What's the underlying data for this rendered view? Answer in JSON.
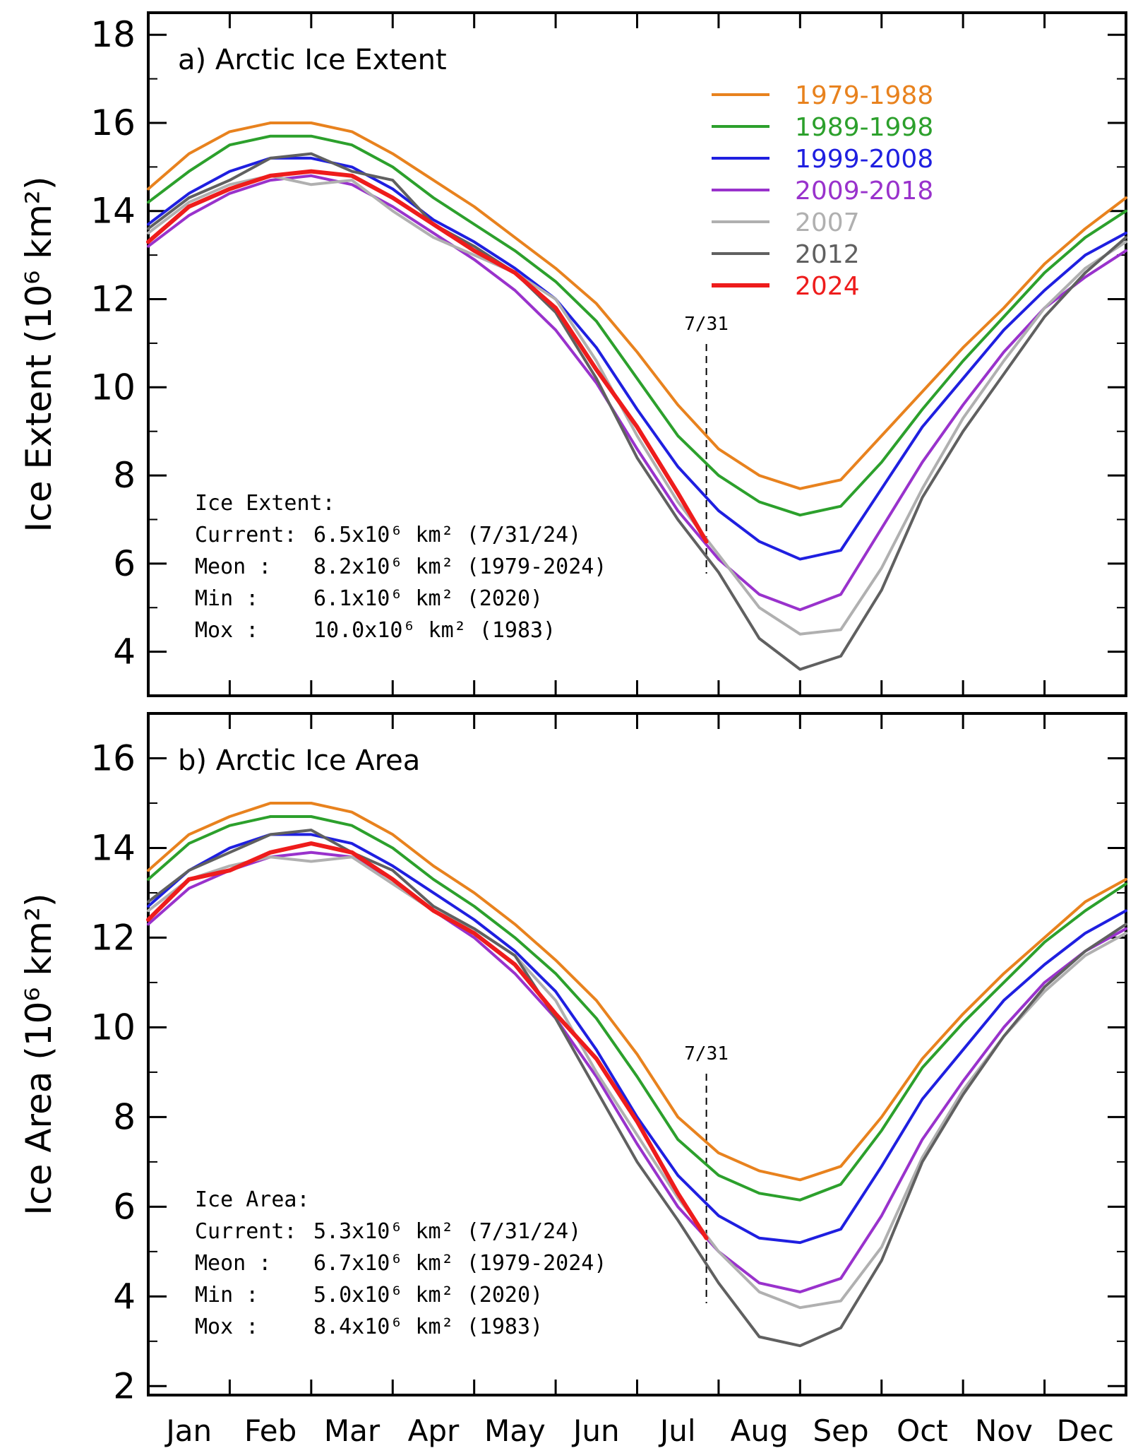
{
  "chart_data": [
    {
      "type": "line",
      "title": "a) Arctic Ice Extent",
      "ylabel": "Ice Extent (10⁶ km²)",
      "ylim": [
        3,
        18.5
      ],
      "yticks": [
        4,
        6,
        8,
        10,
        12,
        14,
        16,
        18
      ],
      "marker_label": "7/31",
      "stats_heading": "Ice Extent:",
      "stats": [
        {
          "label": "Current:",
          "value": "6.5x10⁶ km² (7/31/24)"
        },
        {
          "label": "Meon   :",
          "value": "8.2x10⁶ km² (1979-2024)"
        },
        {
          "label": "Min     :",
          "value": "6.1x10⁶ km² (2020)"
        },
        {
          "label": "Mox    :",
          "value": "10.0x10⁶ km² (1983)"
        }
      ],
      "x_units": "month (1.0 = start of Jan, 13.0 = end of Dec)",
      "series": [
        {
          "name": "1979-1988",
          "color": "#e8821e",
          "x": [
            1,
            1.5,
            2,
            2.5,
            3,
            3.5,
            4,
            4.5,
            5,
            5.5,
            6,
            6.5,
            7,
            7.5,
            8,
            8.5,
            9,
            9.5,
            10,
            10.5,
            11,
            11.5,
            12,
            12.5,
            13
          ],
          "y": [
            14.5,
            15.3,
            15.8,
            16.0,
            16.0,
            15.8,
            15.3,
            14.7,
            14.1,
            13.4,
            12.7,
            11.9,
            10.8,
            9.6,
            8.6,
            8.0,
            7.7,
            7.9,
            8.9,
            9.9,
            10.9,
            11.8,
            12.8,
            13.6,
            14.3
          ]
        },
        {
          "name": "1989-1998",
          "color": "#2ca02c",
          "x": [
            1,
            1.5,
            2,
            2.5,
            3,
            3.5,
            4,
            4.5,
            5,
            5.5,
            6,
            6.5,
            7,
            7.5,
            8,
            8.5,
            9,
            9.5,
            10,
            10.5,
            11,
            11.5,
            12,
            12.5,
            13
          ],
          "y": [
            14.2,
            14.9,
            15.5,
            15.7,
            15.7,
            15.5,
            15.0,
            14.3,
            13.7,
            13.1,
            12.4,
            11.5,
            10.2,
            8.9,
            8.0,
            7.4,
            7.1,
            7.3,
            8.3,
            9.5,
            10.6,
            11.6,
            12.6,
            13.4,
            14.0
          ]
        },
        {
          "name": "1999-2008",
          "color": "#1f1fe0",
          "x": [
            1,
            1.5,
            2,
            2.5,
            3,
            3.5,
            4,
            4.5,
            5,
            5.5,
            6,
            6.5,
            7,
            7.5,
            8,
            8.5,
            9,
            9.5,
            10,
            10.5,
            11,
            11.5,
            12,
            12.5,
            13
          ],
          "y": [
            13.7,
            14.4,
            14.9,
            15.2,
            15.2,
            15.0,
            14.5,
            13.8,
            13.3,
            12.7,
            12.0,
            10.9,
            9.5,
            8.2,
            7.2,
            6.5,
            6.1,
            6.3,
            7.7,
            9.1,
            10.2,
            11.3,
            12.2,
            13.0,
            13.5
          ]
        },
        {
          "name": "2009-2018",
          "color": "#9932cc",
          "x": [
            1,
            1.5,
            2,
            2.5,
            3,
            3.5,
            4,
            4.5,
            5,
            5.5,
            6,
            6.5,
            7,
            7.5,
            8,
            8.5,
            9,
            9.5,
            10,
            10.5,
            11,
            11.5,
            12,
            12.5,
            13
          ],
          "y": [
            13.2,
            13.9,
            14.4,
            14.7,
            14.8,
            14.6,
            14.1,
            13.5,
            12.9,
            12.2,
            11.3,
            10.1,
            8.6,
            7.2,
            6.1,
            5.3,
            4.95,
            5.3,
            6.8,
            8.3,
            9.6,
            10.8,
            11.8,
            12.5,
            13.1
          ]
        },
        {
          "name": "2007",
          "color": "#b0b0b0",
          "x": [
            1,
            1.5,
            2,
            2.5,
            3,
            3.5,
            4,
            4.5,
            5,
            5.5,
            6,
            6.5,
            7,
            7.5,
            8,
            8.5,
            9,
            9.5,
            10,
            10.5,
            11,
            11.5,
            12,
            12.5,
            13
          ],
          "y": [
            13.5,
            14.2,
            14.6,
            14.8,
            14.6,
            14.7,
            14.0,
            13.4,
            13.0,
            12.6,
            12.0,
            10.6,
            8.9,
            7.4,
            6.2,
            5.0,
            4.4,
            4.5,
            5.9,
            7.7,
            9.3,
            10.6,
            11.8,
            12.7,
            13.3
          ]
        },
        {
          "name": "2012",
          "color": "#606060",
          "x": [
            1,
            1.5,
            2,
            2.5,
            3,
            3.5,
            4,
            4.5,
            5,
            5.5,
            6,
            6.5,
            7,
            7.5,
            8,
            8.5,
            9,
            9.5,
            10,
            10.5,
            11,
            11.5,
            12,
            12.5,
            13
          ],
          "y": [
            13.6,
            14.3,
            14.7,
            15.2,
            15.3,
            14.9,
            14.7,
            13.7,
            13.2,
            12.6,
            11.7,
            10.2,
            8.4,
            7.0,
            5.8,
            4.3,
            3.6,
            3.9,
            5.4,
            7.5,
            9.0,
            10.3,
            11.6,
            12.6,
            13.4
          ]
        },
        {
          "name": "2024",
          "color": "#ee1c1c",
          "x": [
            1,
            1.5,
            2,
            2.5,
            3,
            3.5,
            4,
            4.5,
            5,
            5.5,
            6,
            6.5,
            7,
            7.5,
            7.85
          ],
          "y": [
            13.3,
            14.1,
            14.5,
            14.8,
            14.9,
            14.8,
            14.3,
            13.7,
            13.1,
            12.6,
            11.8,
            10.4,
            9.1,
            7.6,
            6.5
          ]
        }
      ]
    },
    {
      "type": "line",
      "title": "b) Arctic Ice Area",
      "ylabel": "Ice Area (10⁶ km²)",
      "ylim": [
        1.8,
        17
      ],
      "yticks": [
        2,
        4,
        6,
        8,
        10,
        12,
        14,
        16
      ],
      "xticks": [
        "Jan",
        "Feb",
        "Mar",
        "Apr",
        "May",
        "Jun",
        "Jul",
        "Aug",
        "Sep",
        "Oct",
        "Nov",
        "Dec"
      ],
      "marker_label": "7/31",
      "stats_heading": "Ice Area:",
      "stats": [
        {
          "label": "Current:",
          "value": "5.3x10⁶ km² (7/31/24)"
        },
        {
          "label": "Meon   :",
          "value": "6.7x10⁶ km² (1979-2024)"
        },
        {
          "label": "Min     :",
          "value": "5.0x10⁶ km² (2020)"
        },
        {
          "label": "Mox    :",
          "value": "8.4x10⁶ km² (1983)"
        }
      ],
      "x_units": "month (1.0 = start of Jan, 13.0 = end of Dec)",
      "series": [
        {
          "name": "1979-1988",
          "color": "#e8821e",
          "x": [
            1,
            1.5,
            2,
            2.5,
            3,
            3.5,
            4,
            4.5,
            5,
            5.5,
            6,
            6.5,
            7,
            7.5,
            8,
            8.5,
            9,
            9.5,
            10,
            10.5,
            11,
            11.5,
            12,
            12.5,
            13
          ],
          "y": [
            13.5,
            14.3,
            14.7,
            15.0,
            15.0,
            14.8,
            14.3,
            13.6,
            13.0,
            12.3,
            11.5,
            10.6,
            9.4,
            8.0,
            7.2,
            6.8,
            6.6,
            6.9,
            8.0,
            9.3,
            10.3,
            11.2,
            12.0,
            12.8,
            13.3
          ]
        },
        {
          "name": "1989-1998",
          "color": "#2ca02c",
          "x": [
            1,
            1.5,
            2,
            2.5,
            3,
            3.5,
            4,
            4.5,
            5,
            5.5,
            6,
            6.5,
            7,
            7.5,
            8,
            8.5,
            9,
            9.5,
            10,
            10.5,
            11,
            11.5,
            12,
            12.5,
            13
          ],
          "y": [
            13.3,
            14.1,
            14.5,
            14.7,
            14.7,
            14.5,
            14.0,
            13.3,
            12.7,
            12.0,
            11.2,
            10.2,
            8.9,
            7.5,
            6.7,
            6.3,
            6.15,
            6.5,
            7.7,
            9.1,
            10.1,
            11.0,
            11.9,
            12.6,
            13.2
          ]
        },
        {
          "name": "1999-2008",
          "color": "#1f1fe0",
          "x": [
            1,
            1.5,
            2,
            2.5,
            3,
            3.5,
            4,
            4.5,
            5,
            5.5,
            6,
            6.5,
            7,
            7.5,
            8,
            8.5,
            9,
            9.5,
            10,
            10.5,
            11,
            11.5,
            12,
            12.5,
            13
          ],
          "y": [
            12.7,
            13.5,
            14.0,
            14.3,
            14.3,
            14.1,
            13.6,
            13.0,
            12.4,
            11.7,
            10.8,
            9.5,
            8.0,
            6.7,
            5.8,
            5.3,
            5.2,
            5.5,
            6.9,
            8.4,
            9.5,
            10.6,
            11.4,
            12.1,
            12.6
          ]
        },
        {
          "name": "2009-2018",
          "color": "#9932cc",
          "x": [
            1,
            1.5,
            2,
            2.5,
            3,
            3.5,
            4,
            4.5,
            5,
            5.5,
            6,
            6.5,
            7,
            7.5,
            8,
            8.5,
            9,
            9.5,
            10,
            10.5,
            11,
            11.5,
            12,
            12.5,
            13
          ],
          "y": [
            12.3,
            13.1,
            13.5,
            13.8,
            13.9,
            13.8,
            13.3,
            12.6,
            12.0,
            11.2,
            10.2,
            8.9,
            7.4,
            6.0,
            5.0,
            4.3,
            4.1,
            4.4,
            5.8,
            7.5,
            8.8,
            10.0,
            11.0,
            11.7,
            12.2
          ]
        },
        {
          "name": "2007",
          "color": "#b0b0b0",
          "x": [
            1,
            1.5,
            2,
            2.5,
            3,
            3.5,
            4,
            4.5,
            5,
            5.5,
            6,
            6.5,
            7,
            7.5,
            8,
            8.5,
            9,
            9.5,
            10,
            10.5,
            11,
            11.5,
            12,
            12.5,
            13
          ],
          "y": [
            12.6,
            13.3,
            13.6,
            13.8,
            13.7,
            13.8,
            13.2,
            12.6,
            12.2,
            11.6,
            10.6,
            9.0,
            7.6,
            6.2,
            5.0,
            4.1,
            3.75,
            3.9,
            5.1,
            7.1,
            8.6,
            9.8,
            10.8,
            11.6,
            12.1
          ]
        },
        {
          "name": "2012",
          "color": "#606060",
          "x": [
            1,
            1.5,
            2,
            2.5,
            3,
            3.5,
            4,
            4.5,
            5,
            5.5,
            6,
            6.5,
            7,
            7.5,
            8,
            8.5,
            9,
            9.5,
            10,
            10.5,
            11,
            11.5,
            12,
            12.5,
            13
          ],
          "y": [
            12.8,
            13.5,
            13.9,
            14.3,
            14.4,
            13.9,
            13.5,
            12.7,
            12.2,
            11.6,
            10.2,
            8.6,
            7.0,
            5.7,
            4.3,
            3.1,
            2.9,
            3.3,
            4.8,
            7.0,
            8.5,
            9.8,
            10.9,
            11.7,
            12.3
          ]
        },
        {
          "name": "2024",
          "color": "#ee1c1c",
          "x": [
            1,
            1.5,
            2,
            2.5,
            3,
            3.5,
            4,
            4.5,
            5,
            5.5,
            6,
            6.5,
            7,
            7.5,
            7.85
          ],
          "y": [
            12.4,
            13.3,
            13.5,
            13.9,
            14.1,
            13.9,
            13.3,
            12.6,
            12.1,
            11.4,
            10.3,
            9.3,
            7.9,
            6.3,
            5.3
          ]
        }
      ]
    }
  ]
}
